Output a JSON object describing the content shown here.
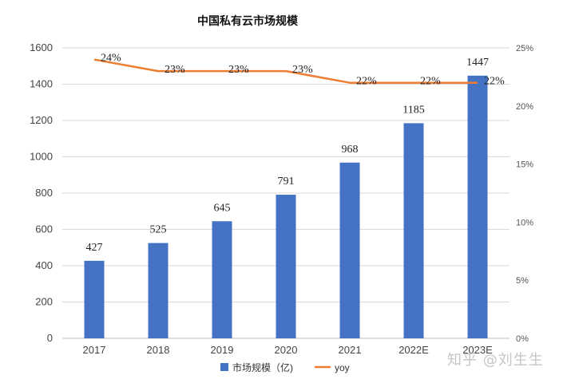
{
  "chart_data": {
    "type": "bar",
    "title": "中国私有云市场规模",
    "categories": [
      "2017",
      "2018",
      "2019",
      "2020",
      "2021",
      "2022E",
      "2023E"
    ],
    "series": [
      {
        "name": "市场规模（亿)",
        "kind": "bar",
        "axis": "left",
        "color": "#4472c4",
        "values": [
          427,
          525,
          645,
          791,
          968,
          1185,
          1447
        ],
        "labels": [
          "427",
          "525",
          "645",
          "791",
          "968",
          "1185",
          "1447"
        ]
      },
      {
        "name": "yoy",
        "kind": "line",
        "axis": "right",
        "color": "#ed7d31",
        "values": [
          24,
          23,
          23,
          23,
          22,
          22,
          22
        ],
        "labels": [
          "24%",
          "23%",
          "23%",
          "23%",
          "22%",
          "22%",
          "22%"
        ]
      }
    ],
    "y_left": {
      "ylim": [
        0,
        1600
      ],
      "ticks": [
        "0",
        "200",
        "400",
        "600",
        "800",
        "1000",
        "1200",
        "1400",
        "1600"
      ]
    },
    "y_right": {
      "ylim": [
        0,
        25
      ],
      "ticks": [
        "0%",
        "5%",
        "10%",
        "15%",
        "20%",
        "25%"
      ]
    },
    "grid": true,
    "legend": "bottom"
  },
  "watermark": "知乎 @刘生生"
}
